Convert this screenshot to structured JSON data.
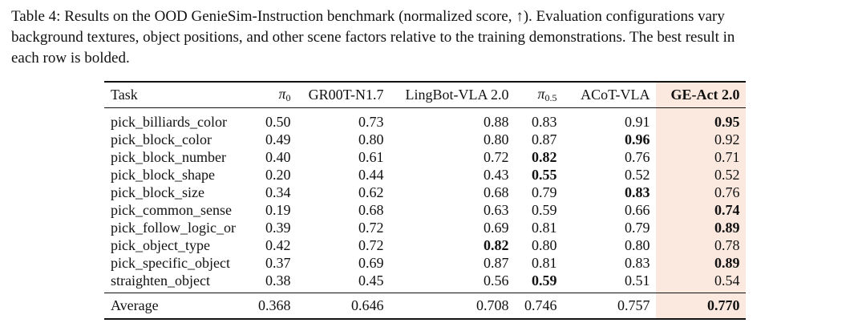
{
  "caption": {
    "line1": "Table 4: Results on the OOD GenieSim-Instruction benchmark (normalized score, ↑). Evaluation configurations vary",
    "line2": "background textures, object positions, and other scene factors relative to the training demonstrations. The best result in",
    "line3": "each row is bolded."
  },
  "table": {
    "headers": {
      "task": "Task",
      "pi0_symbol": "π",
      "pi0_sub": "0",
      "gr00t": "GR00T-N1.7",
      "lingbot": "LingBot-VLA 2.0",
      "pi05_symbol": "π",
      "pi05_sub": "0.5",
      "acot": "ACoT-VLA",
      "geact": "GE-Act 2.0"
    },
    "rows": [
      {
        "task": "pick_billiards_color",
        "pi0": "0.50",
        "gr00t": "0.73",
        "lingbot": "0.88",
        "pi05": "0.83",
        "acot": "0.91",
        "geact": "0.95"
      },
      {
        "task": "pick_block_color",
        "pi0": "0.49",
        "gr00t": "0.80",
        "lingbot": "0.80",
        "pi05": "0.87",
        "acot": "0.96",
        "geact": "0.92"
      },
      {
        "task": "pick_block_number",
        "pi0": "0.40",
        "gr00t": "0.61",
        "lingbot": "0.72",
        "pi05": "0.82",
        "acot": "0.76",
        "geact": "0.71"
      },
      {
        "task": "pick_block_shape",
        "pi0": "0.20",
        "gr00t": "0.44",
        "lingbot": "0.43",
        "pi05": "0.55",
        "acot": "0.52",
        "geact": "0.52"
      },
      {
        "task": "pick_block_size",
        "pi0": "0.34",
        "gr00t": "0.62",
        "lingbot": "0.68",
        "pi05": "0.79",
        "acot": "0.83",
        "geact": "0.76"
      },
      {
        "task": "pick_common_sense",
        "pi0": "0.19",
        "gr00t": "0.68",
        "lingbot": "0.63",
        "pi05": "0.59",
        "acot": "0.66",
        "geact": "0.74"
      },
      {
        "task": "pick_follow_logic_or",
        "pi0": "0.39",
        "gr00t": "0.72",
        "lingbot": "0.69",
        "pi05": "0.81",
        "acot": "0.79",
        "geact": "0.89"
      },
      {
        "task": "pick_object_type",
        "pi0": "0.42",
        "gr00t": "0.72",
        "lingbot": "0.82",
        "pi05": "0.80",
        "acot": "0.80",
        "geact": "0.78"
      },
      {
        "task": "pick_specific_object",
        "pi0": "0.37",
        "gr00t": "0.69",
        "lingbot": "0.87",
        "pi05": "0.81",
        "acot": "0.83",
        "geact": "0.89"
      },
      {
        "task": "straighten_object",
        "pi0": "0.38",
        "gr00t": "0.45",
        "lingbot": "0.56",
        "pi05": "0.59",
        "acot": "0.51",
        "geact": "0.54"
      }
    ],
    "average": {
      "task": "Average",
      "pi0": "0.368",
      "gr00t": "0.646",
      "lingbot": "0.708",
      "pi05": "0.746",
      "acot": "0.757",
      "geact": "0.770"
    }
  }
}
